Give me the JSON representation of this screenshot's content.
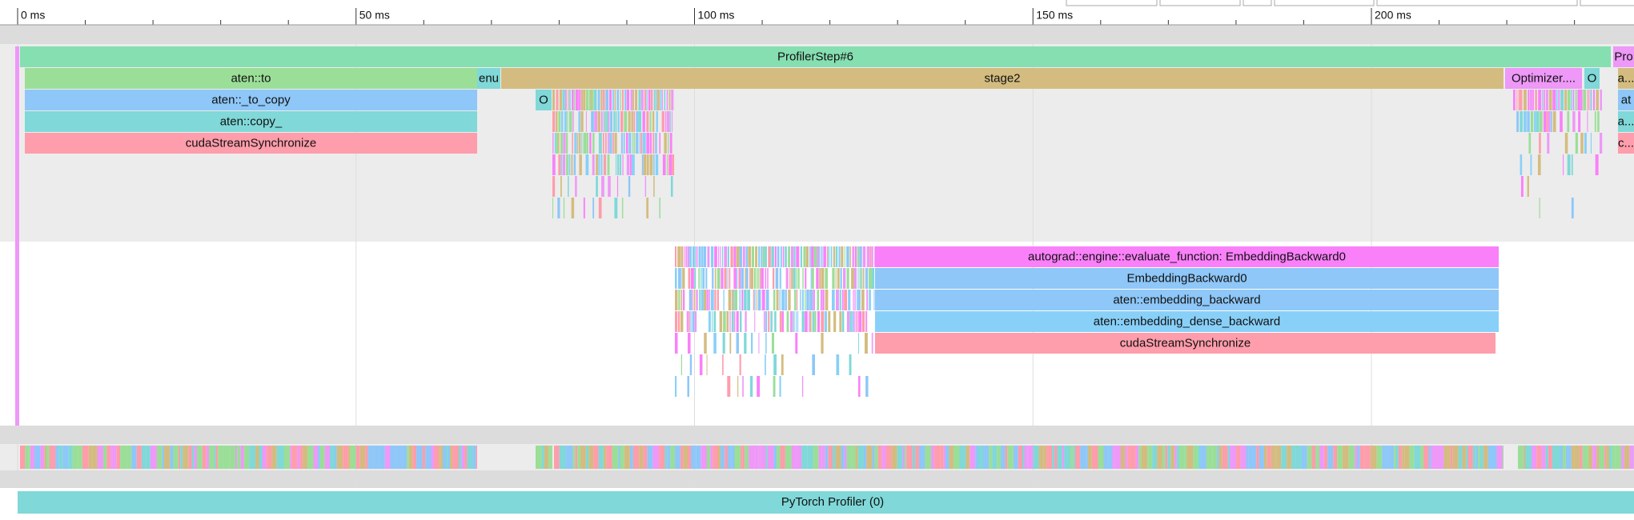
{
  "ruler": {
    "ticks": [
      "0 ms",
      "50 ms",
      "100 ms",
      "150 ms",
      "200 ms"
    ]
  },
  "thread_main": {
    "slices": [
      {
        "label": "ProfilerStep#6"
      },
      {
        "label": "Pro"
      },
      {
        "label": "aten::to"
      },
      {
        "label": "enu"
      },
      {
        "label": "stage2"
      },
      {
        "label": "Optimizer...."
      },
      {
        "label": "O"
      },
      {
        "label": "a..."
      },
      {
        "label": "aten::_to_copy"
      },
      {
        "label": "O"
      },
      {
        "label": "at"
      },
      {
        "label": "aten::copy_"
      },
      {
        "label": "a..."
      },
      {
        "label": "cudaStreamSynchronize"
      },
      {
        "label": "c..."
      }
    ]
  },
  "thread_backward": {
    "slices": [
      {
        "label": "autograd::engine::evaluate_function: EmbeddingBackward0"
      },
      {
        "label": "EmbeddingBackward0"
      },
      {
        "label": "aten::embedding_backward"
      },
      {
        "label": "aten::embedding_dense_backward"
      },
      {
        "label": "cudaStreamSynchronize"
      }
    ]
  },
  "gpu_track": {
    "label": "PyTorch Profiler (0)"
  }
}
